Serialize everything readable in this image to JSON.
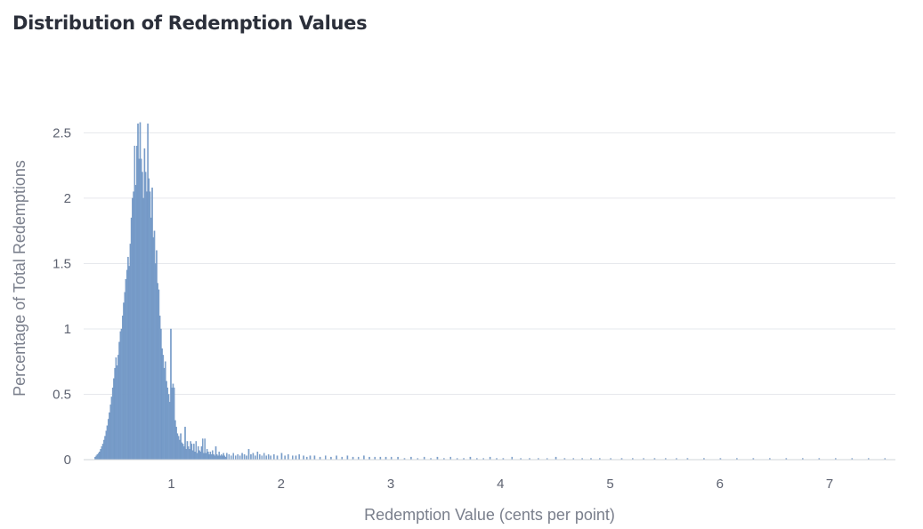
{
  "chart_data": {
    "type": "bar",
    "title": "Distribution of Redemption Values",
    "xlabel": "Redemption Value (cents per point)",
    "ylabel": "Percentage of Total Redemptions",
    "xlim": [
      0.2,
      7.6
    ],
    "ylim": [
      0,
      2.7
    ],
    "x_ticks": [
      1,
      2,
      3,
      4,
      5,
      6,
      7
    ],
    "y_ticks": [
      0,
      0.5,
      1,
      1.5,
      2,
      2.5
    ],
    "y_tick_labels": [
      "0",
      "0.5",
      "1",
      "1.5",
      "2",
      "2.5"
    ],
    "bin_width": 0.01,
    "grid": true,
    "bar_color": "#7a9fcb",
    "bins": [
      [
        0.3,
        0.02
      ],
      [
        0.31,
        0.03
      ],
      [
        0.32,
        0.04
      ],
      [
        0.33,
        0.05
      ],
      [
        0.34,
        0.06
      ],
      [
        0.35,
        0.08
      ],
      [
        0.36,
        0.1
      ],
      [
        0.37,
        0.12
      ],
      [
        0.38,
        0.15
      ],
      [
        0.39,
        0.18
      ],
      [
        0.4,
        0.22
      ],
      [
        0.41,
        0.26
      ],
      [
        0.42,
        0.31
      ],
      [
        0.43,
        0.36
      ],
      [
        0.44,
        0.42
      ],
      [
        0.45,
        0.48
      ],
      [
        0.46,
        0.55
      ],
      [
        0.47,
        0.62
      ],
      [
        0.48,
        0.7
      ],
      [
        0.49,
        0.78
      ],
      [
        0.5,
        0.72
      ],
      [
        0.51,
        0.8
      ],
      [
        0.52,
        0.9
      ],
      [
        0.53,
        0.98
      ],
      [
        0.54,
        1.0
      ],
      [
        0.55,
        1.1
      ],
      [
        0.56,
        1.2
      ],
      [
        0.57,
        1.28
      ],
      [
        0.58,
        1.38
      ],
      [
        0.59,
        1.45
      ],
      [
        0.6,
        1.55
      ],
      [
        0.61,
        1.48
      ],
      [
        0.62,
        1.65
      ],
      [
        0.63,
        1.85
      ],
      [
        0.64,
        2.0
      ],
      [
        0.65,
        2.05
      ],
      [
        0.66,
        2.4
      ],
      [
        0.67,
        2.1
      ],
      [
        0.68,
        2.4
      ],
      [
        0.69,
        2.57
      ],
      [
        0.7,
        2.3
      ],
      [
        0.71,
        2.58
      ],
      [
        0.72,
        2.3
      ],
      [
        0.73,
        2.2
      ],
      [
        0.74,
        2.0
      ],
      [
        0.75,
        2.38
      ],
      [
        0.76,
        2.2
      ],
      [
        0.77,
        2.05
      ],
      [
        0.78,
        2.57
      ],
      [
        0.79,
        2.15
      ],
      [
        0.8,
        2.05
      ],
      [
        0.81,
        1.85
      ],
      [
        0.82,
        2.08
      ],
      [
        0.83,
        1.7
      ],
      [
        0.84,
        1.75
      ],
      [
        0.85,
        1.5
      ],
      [
        0.86,
        1.6
      ],
      [
        0.87,
        1.35
      ],
      [
        0.88,
        1.3
      ],
      [
        0.89,
        1.1
      ],
      [
        0.9,
        1.0
      ],
      [
        0.91,
        0.85
      ],
      [
        0.92,
        0.8
      ],
      [
        0.93,
        0.7
      ],
      [
        0.94,
        0.75
      ],
      [
        0.95,
        0.6
      ],
      [
        0.96,
        0.55
      ],
      [
        0.97,
        0.5
      ],
      [
        0.98,
        0.44
      ],
      [
        0.99,
        1.0
      ],
      [
        1.0,
        0.55
      ],
      [
        1.01,
        0.58
      ],
      [
        1.02,
        0.55
      ],
      [
        1.03,
        0.3
      ],
      [
        1.04,
        0.25
      ],
      [
        1.05,
        0.2
      ],
      [
        1.06,
        0.18
      ],
      [
        1.07,
        0.15
      ],
      [
        1.08,
        0.2
      ],
      [
        1.09,
        0.13
      ],
      [
        1.1,
        0.12
      ],
      [
        1.11,
        0.1
      ],
      [
        1.12,
        0.25
      ],
      [
        1.13,
        0.08
      ],
      [
        1.14,
        0.14
      ],
      [
        1.15,
        0.1
      ],
      [
        1.16,
        0.08
      ],
      [
        1.17,
        0.14
      ],
      [
        1.18,
        0.12
      ],
      [
        1.19,
        0.07
      ],
      [
        1.2,
        0.12
      ],
      [
        1.21,
        0.06
      ],
      [
        1.22,
        0.14
      ],
      [
        1.23,
        0.05
      ],
      [
        1.24,
        0.1
      ],
      [
        1.25,
        0.07
      ],
      [
        1.26,
        0.06
      ],
      [
        1.27,
        0.1
      ],
      [
        1.28,
        0.16
      ],
      [
        1.29,
        0.05
      ],
      [
        1.3,
        0.16
      ],
      [
        1.31,
        0.05
      ],
      [
        1.32,
        0.08
      ],
      [
        1.33,
        0.06
      ],
      [
        1.34,
        0.04
      ],
      [
        1.35,
        0.06
      ],
      [
        1.36,
        0.04
      ],
      [
        1.37,
        0.07
      ],
      [
        1.38,
        0.04
      ],
      [
        1.39,
        0.03
      ],
      [
        1.4,
        0.1
      ],
      [
        1.41,
        0.04
      ],
      [
        1.42,
        0.03
      ],
      [
        1.43,
        0.06
      ],
      [
        1.44,
        0.03
      ],
      [
        1.45,
        0.04
      ],
      [
        1.46,
        0.03
      ],
      [
        1.47,
        0.05
      ],
      [
        1.48,
        0.03
      ],
      [
        1.49,
        0.02
      ],
      [
        1.5,
        0.05
      ],
      [
        1.52,
        0.04
      ],
      [
        1.54,
        0.03
      ],
      [
        1.56,
        0.05
      ],
      [
        1.58,
        0.03
      ],
      [
        1.6,
        0.04
      ],
      [
        1.62,
        0.03
      ],
      [
        1.64,
        0.05
      ],
      [
        1.66,
        0.04
      ],
      [
        1.68,
        0.03
      ],
      [
        1.7,
        0.08
      ],
      [
        1.72,
        0.04
      ],
      [
        1.74,
        0.05
      ],
      [
        1.76,
        0.03
      ],
      [
        1.78,
        0.06
      ],
      [
        1.8,
        0.04
      ],
      [
        1.82,
        0.03
      ],
      [
        1.84,
        0.05
      ],
      [
        1.86,
        0.03
      ],
      [
        1.88,
        0.04
      ],
      [
        1.9,
        0.03
      ],
      [
        1.93,
        0.04
      ],
      [
        1.96,
        0.03
      ],
      [
        2.0,
        0.05
      ],
      [
        2.03,
        0.03
      ],
      [
        2.06,
        0.04
      ],
      [
        2.1,
        0.03
      ],
      [
        2.13,
        0.03
      ],
      [
        2.16,
        0.04
      ],
      [
        2.2,
        0.03
      ],
      [
        2.23,
        0.02
      ],
      [
        2.26,
        0.03
      ],
      [
        2.3,
        0.03
      ],
      [
        2.35,
        0.02
      ],
      [
        2.4,
        0.03
      ],
      [
        2.45,
        0.02
      ],
      [
        2.5,
        0.03
      ],
      [
        2.55,
        0.02
      ],
      [
        2.6,
        0.03
      ],
      [
        2.65,
        0.02
      ],
      [
        2.7,
        0.02
      ],
      [
        2.75,
        0.03
      ],
      [
        2.8,
        0.02
      ],
      [
        2.85,
        0.02
      ],
      [
        2.9,
        0.02
      ],
      [
        2.95,
        0.02
      ],
      [
        3.0,
        0.02
      ],
      [
        3.06,
        0.02
      ],
      [
        3.12,
        0.01
      ],
      [
        3.18,
        0.02
      ],
      [
        3.24,
        0.01
      ],
      [
        3.3,
        0.02
      ],
      [
        3.36,
        0.01
      ],
      [
        3.42,
        0.02
      ],
      [
        3.48,
        0.01
      ],
      [
        3.54,
        0.02
      ],
      [
        3.6,
        0.01
      ],
      [
        3.66,
        0.01
      ],
      [
        3.72,
        0.02
      ],
      [
        3.78,
        0.01
      ],
      [
        3.84,
        0.01
      ],
      [
        3.9,
        0.02
      ],
      [
        3.96,
        0.01
      ],
      [
        4.02,
        0.01
      ],
      [
        4.1,
        0.02
      ],
      [
        4.18,
        0.01
      ],
      [
        4.26,
        0.01
      ],
      [
        4.34,
        0.01
      ],
      [
        4.42,
        0.01
      ],
      [
        4.5,
        0.02
      ],
      [
        4.58,
        0.01
      ],
      [
        4.66,
        0.01
      ],
      [
        4.74,
        0.01
      ],
      [
        4.82,
        0.01
      ],
      [
        4.9,
        0.01
      ],
      [
        5.0,
        0.01
      ],
      [
        5.1,
        0.01
      ],
      [
        5.2,
        0.01
      ],
      [
        5.3,
        0.01
      ],
      [
        5.4,
        0.01
      ],
      [
        5.5,
        0.01
      ],
      [
        5.6,
        0.01
      ],
      [
        5.7,
        0.01
      ],
      [
        5.85,
        0.01
      ],
      [
        6.0,
        0.01
      ],
      [
        6.15,
        0.01
      ],
      [
        6.3,
        0.01
      ],
      [
        6.45,
        0.01
      ],
      [
        6.6,
        0.01
      ],
      [
        6.75,
        0.01
      ],
      [
        6.9,
        0.01
      ],
      [
        7.05,
        0.01
      ],
      [
        7.2,
        0.01
      ],
      [
        7.35,
        0.01
      ],
      [
        7.5,
        0.01
      ]
    ]
  }
}
